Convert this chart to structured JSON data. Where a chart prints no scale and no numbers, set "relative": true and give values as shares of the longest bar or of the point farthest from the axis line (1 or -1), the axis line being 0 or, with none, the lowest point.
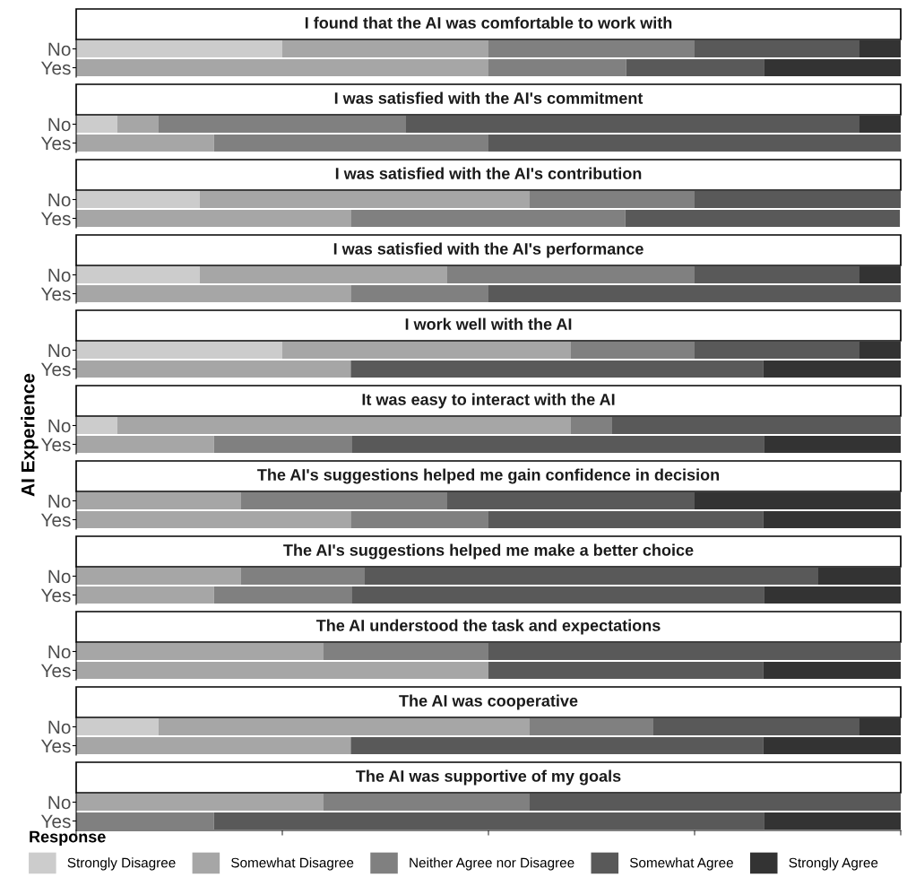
{
  "chart_data": [
    {
      "type": "bar",
      "orientation": "horizontal",
      "stacked": true,
      "relative": true,
      "title": "I found that the AI was comfortable to work with",
      "categories": [
        "No",
        "Yes"
      ],
      "tick_labels": "y",
      "legend": "bottom",
      "legend_title": "Response",
      "series": [
        {
          "name": "Strongly Disagree",
          "color": "#cccccc",
          "values": [
            0.25,
            0
          ]
        },
        {
          "name": "Somewhat Disagree",
          "color": "#a6a6a6",
          "values": [
            0.25,
            0.5
          ]
        },
        {
          "name": "Neither Agree nor Disagree",
          "color": "#808080",
          "values": [
            0.25,
            0.167
          ]
        },
        {
          "name": "Somewhat Agree",
          "color": "#595959",
          "values": [
            0.2,
            0.167
          ]
        },
        {
          "name": "Strongly Agree",
          "color": "#333333",
          "values": [
            0.05,
            0.166
          ]
        }
      ]
    },
    {
      "type": "bar",
      "orientation": "horizontal",
      "stacked": true,
      "relative": true,
      "title": "I was satisfied with the AI's commitment",
      "categories": [
        "No",
        "Yes"
      ],
      "tick_labels": "y",
      "series": [
        {
          "color": "#cccccc",
          "values": [
            0.05,
            0
          ]
        },
        {
          "color": "#a6a6a6",
          "values": [
            0.05,
            0.167
          ]
        },
        {
          "color": "#808080",
          "values": [
            0.3,
            0.333
          ]
        },
        {
          "color": "#595959",
          "values": [
            0.55,
            0.5
          ]
        },
        {
          "color": "#333333",
          "values": [
            0.05,
            0
          ]
        }
      ]
    },
    {
      "type": "bar",
      "orientation": "horizontal",
      "stacked": true,
      "relative": true,
      "title": "I was satisfied with the AI's contribution",
      "categories": [
        "No",
        "Yes"
      ],
      "tick_labels": "y",
      "series": [
        {
          "color": "#cccccc",
          "values": [
            0.15,
            0
          ]
        },
        {
          "color": "#a6a6a6",
          "values": [
            0.4,
            0.333
          ]
        },
        {
          "color": "#808080",
          "values": [
            0.2,
            0.333
          ]
        },
        {
          "color": "#595959",
          "values": [
            0.25,
            0.333
          ]
        },
        {
          "color": "#333333",
          "values": [
            0,
            0
          ]
        }
      ]
    },
    {
      "type": "bar",
      "orientation": "horizontal",
      "stacked": true,
      "relative": true,
      "title": "I was satisfied with the AI's performance",
      "categories": [
        "No",
        "Yes"
      ],
      "tick_labels": "y",
      "series": [
        {
          "color": "#cccccc",
          "values": [
            0.15,
            0
          ]
        },
        {
          "color": "#a6a6a6",
          "values": [
            0.3,
            0.333
          ]
        },
        {
          "color": "#808080",
          "values": [
            0.3,
            0.167
          ]
        },
        {
          "color": "#595959",
          "values": [
            0.2,
            0.5
          ]
        },
        {
          "color": "#333333",
          "values": [
            0.05,
            0
          ]
        }
      ]
    },
    {
      "type": "bar",
      "orientation": "horizontal",
      "stacked": true,
      "relative": true,
      "title": "I work well with the AI",
      "categories": [
        "No",
        "Yes"
      ],
      "tick_labels": "y",
      "series": [
        {
          "color": "#cccccc",
          "values": [
            0.25,
            0
          ]
        },
        {
          "color": "#a6a6a6",
          "values": [
            0.35,
            0.333
          ]
        },
        {
          "color": "#808080",
          "values": [
            0.15,
            0
          ]
        },
        {
          "color": "#595959",
          "values": [
            0.2,
            0.5
          ]
        },
        {
          "color": "#333333",
          "values": [
            0.05,
            0.167
          ]
        }
      ]
    },
    {
      "type": "bar",
      "orientation": "horizontal",
      "stacked": true,
      "relative": true,
      "title": "It was easy to interact with the AI",
      "ylabel": "AI Experience",
      "categories": [
        "No",
        "Yes"
      ],
      "tick_labels": "y",
      "series": [
        {
          "color": "#cccccc",
          "values": [
            0.05,
            0
          ]
        },
        {
          "color": "#a6a6a6",
          "values": [
            0.55,
            0.167
          ]
        },
        {
          "color": "#808080",
          "values": [
            0.05,
            0.167
          ]
        },
        {
          "color": "#595959",
          "values": [
            0.35,
            0.5
          ]
        },
        {
          "color": "#333333",
          "values": [
            0,
            0.166
          ]
        }
      ]
    },
    {
      "type": "bar",
      "orientation": "horizontal",
      "stacked": true,
      "relative": true,
      "title": "The AI's suggestions helped me gain confidence in decision",
      "categories": [
        "No",
        "Yes"
      ],
      "tick_labels": "y",
      "series": [
        {
          "color": "#cccccc",
          "values": [
            0,
            0
          ]
        },
        {
          "color": "#a6a6a6",
          "values": [
            0.2,
            0.333
          ]
        },
        {
          "color": "#808080",
          "values": [
            0.25,
            0.167
          ]
        },
        {
          "color": "#595959",
          "values": [
            0.3,
            0.333
          ]
        },
        {
          "color": "#333333",
          "values": [
            0.25,
            0.167
          ]
        }
      ]
    },
    {
      "type": "bar",
      "orientation": "horizontal",
      "stacked": true,
      "relative": true,
      "title": "The AI's suggestions helped me make a better choice",
      "categories": [
        "No",
        "Yes"
      ],
      "tick_labels": "y",
      "series": [
        {
          "color": "#cccccc",
          "values": [
            0,
            0
          ]
        },
        {
          "color": "#a6a6a6",
          "values": [
            0.2,
            0.167
          ]
        },
        {
          "color": "#808080",
          "values": [
            0.15,
            0.167
          ]
        },
        {
          "color": "#595959",
          "values": [
            0.55,
            0.5
          ]
        },
        {
          "color": "#333333",
          "values": [
            0.1,
            0.166
          ]
        }
      ]
    },
    {
      "type": "bar",
      "orientation": "horizontal",
      "stacked": true,
      "relative": true,
      "title": "The AI understood the task and expectations",
      "categories": [
        "No",
        "Yes"
      ],
      "tick_labels": "y",
      "series": [
        {
          "color": "#cccccc",
          "values": [
            0,
            0
          ]
        },
        {
          "color": "#a6a6a6",
          "values": [
            0.3,
            0.5
          ]
        },
        {
          "color": "#808080",
          "values": [
            0.2,
            0
          ]
        },
        {
          "color": "#595959",
          "values": [
            0.5,
            0.333
          ]
        },
        {
          "color": "#333333",
          "values": [
            0,
            0.167
          ]
        }
      ]
    },
    {
      "type": "bar",
      "orientation": "horizontal",
      "stacked": true,
      "relative": true,
      "title": "The AI was cooperative",
      "categories": [
        "No",
        "Yes"
      ],
      "tick_labels": "y",
      "series": [
        {
          "color": "#cccccc",
          "values": [
            0.1,
            0
          ]
        },
        {
          "color": "#a6a6a6",
          "values": [
            0.45,
            0.333
          ]
        },
        {
          "color": "#808080",
          "values": [
            0.15,
            0
          ]
        },
        {
          "color": "#595959",
          "values": [
            0.25,
            0.5
          ]
        },
        {
          "color": "#333333",
          "values": [
            0.05,
            0.167
          ]
        }
      ]
    },
    {
      "type": "bar",
      "orientation": "horizontal",
      "stacked": true,
      "relative": true,
      "title": "The AI was supportive of my goals",
      "categories": [
        "No",
        "Yes"
      ],
      "tick_labels": "y",
      "series": [
        {
          "color": "#cccccc",
          "values": [
            0,
            0
          ]
        },
        {
          "color": "#a6a6a6",
          "values": [
            0.3,
            0
          ]
        },
        {
          "color": "#808080",
          "values": [
            0.25,
            0.167
          ]
        },
        {
          "color": "#595959",
          "values": [
            0.45,
            0.667
          ]
        },
        {
          "color": "#333333",
          "values": [
            0,
            0.166
          ]
        }
      ]
    }
  ]
}
